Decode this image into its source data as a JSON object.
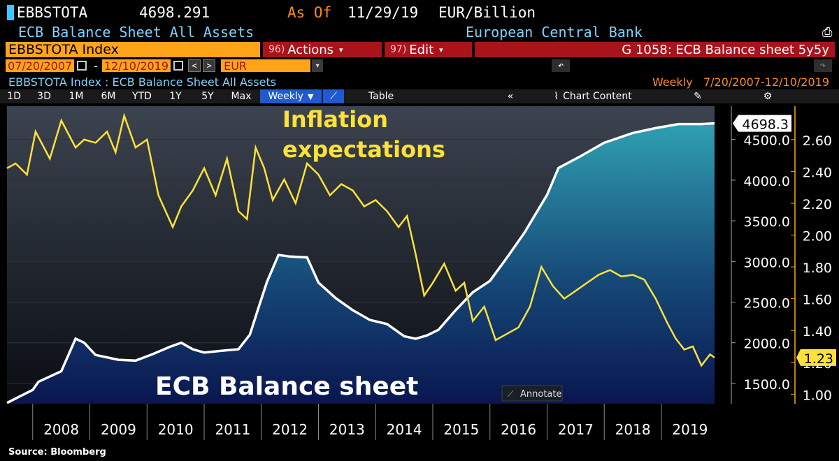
{
  "header": {
    "ticker": "EBBSTOTA",
    "value": "4698.291",
    "as_of_label": "As Of",
    "as_of_date": "11/29/19",
    "unit": "EUR/Billion",
    "subtitle": "ECB Balance Sheet All Assets",
    "source_bank": "European Central Bank"
  },
  "toolbar": {
    "index": "EBBSTOTA Index",
    "actions_num": "96)",
    "actions": "Actions",
    "edit_num": "97)",
    "edit": "Edit",
    "chart_name": "G 1058: ECB Balance sheet 5y5y",
    "start_date": "07/20/2007",
    "end_date": "12/10/2019",
    "currency": "EUR",
    "path": "EBBSTOTA Index : ECB Balance Sheet All Assets",
    "frequency_range": "Weekly   7/20/2007-12/10/2019",
    "periods": [
      "1D",
      "3D",
      "1M",
      "6M",
      "YTD",
      "1Y",
      "5Y",
      "Max"
    ],
    "weekly": "Weekly",
    "table": "Table",
    "chart_content": "Chart Content"
  },
  "colors": {
    "balance": "#ffffff",
    "inflation": "#ffe13a",
    "accent": "#ffa419",
    "button": "#a9131b"
  },
  "chart_data": {
    "type": "line",
    "annotations": [
      "Inflation expectations",
      "ECB Balance sheet"
    ],
    "annotate_button": "Annotate",
    "x_ticks": [
      "2008",
      "2009",
      "2010",
      "2011",
      "2012",
      "2013",
      "2014",
      "2015",
      "2016",
      "2017",
      "2018",
      "2019"
    ],
    "x_range": [
      2007.55,
      2019.93
    ],
    "left_axis": {
      "ticks": [
        "4500.0",
        "4000.0",
        "3500.0",
        "3000.0",
        "2500.0",
        "2000.0",
        "1500.0"
      ],
      "range": [
        1250,
        4910
      ]
    },
    "right_axis": {
      "ticks": [
        "2.60",
        "2.40",
        "2.20",
        "2.00",
        "1.80",
        "1.60",
        "1.40",
        "1.20",
        "1.00"
      ],
      "range": [
        0.94,
        2.81
      ]
    },
    "last_labels": {
      "balance": "4698.3",
      "inflation": "1.23"
    },
    "series": [
      {
        "axis": "left",
        "x": [
          2007.55,
          2007.8,
          2008.0,
          2008.1,
          2008.5,
          2008.75,
          2008.9,
          2009.1,
          2009.5,
          2009.8,
          2010.1,
          2010.4,
          2010.6,
          2010.8,
          2011.0,
          2011.3,
          2011.6,
          2011.8,
          2011.95,
          2012.1,
          2012.3,
          2012.5,
          2012.8,
          2013.0,
          2013.3,
          2013.6,
          2013.9,
          2014.2,
          2014.5,
          2014.7,
          2014.9,
          2015.1,
          2015.4,
          2015.7,
          2016.0,
          2016.3,
          2016.6,
          2017.0,
          2017.2,
          2017.6,
          2018.0,
          2018.5,
          2018.9,
          2019.3,
          2019.7,
          2019.93
        ],
        "y": [
          1260,
          1350,
          1420,
          1520,
          1650,
          2050,
          2000,
          1850,
          1790,
          1780,
          1860,
          1950,
          2000,
          1920,
          1880,
          1900,
          1920,
          2100,
          2430,
          2750,
          3080,
          3060,
          3050,
          2740,
          2550,
          2400,
          2280,
          2230,
          2080,
          2050,
          2090,
          2160,
          2400,
          2620,
          2760,
          3050,
          3350,
          3820,
          4150,
          4300,
          4460,
          4580,
          4640,
          4690,
          4690,
          4698.3
        ]
      },
      {
        "axis": "right",
        "x": [
          2007.55,
          2007.7,
          2007.9,
          2008.05,
          2008.3,
          2008.5,
          2008.75,
          2008.9,
          2009.1,
          2009.3,
          2009.45,
          2009.6,
          2009.8,
          2010.0,
          2010.2,
          2010.45,
          2010.6,
          2010.8,
          2011.0,
          2011.2,
          2011.4,
          2011.6,
          2011.75,
          2011.9,
          2012.05,
          2012.2,
          2012.4,
          2012.6,
          2012.8,
          2013.0,
          2013.2,
          2013.4,
          2013.6,
          2013.8,
          2014.0,
          2014.2,
          2014.4,
          2014.55,
          2014.7,
          2014.85,
          2015.0,
          2015.2,
          2015.4,
          2015.55,
          2015.7,
          2015.9,
          2016.1,
          2016.3,
          2016.5,
          2016.7,
          2016.9,
          2017.1,
          2017.3,
          2017.5,
          2017.7,
          2017.9,
          2018.1,
          2018.3,
          2018.5,
          2018.7,
          2018.9,
          2019.1,
          2019.25,
          2019.4,
          2019.55,
          2019.7,
          2019.85,
          2019.93
        ],
        "y": [
          2.42,
          2.45,
          2.38,
          2.65,
          2.48,
          2.72,
          2.55,
          2.6,
          2.58,
          2.65,
          2.52,
          2.75,
          2.55,
          2.6,
          2.25,
          2.05,
          2.18,
          2.28,
          2.42,
          2.25,
          2.48,
          2.15,
          2.1,
          2.55,
          2.42,
          2.22,
          2.35,
          2.2,
          2.45,
          2.38,
          2.25,
          2.32,
          2.28,
          2.18,
          2.22,
          2.15,
          2.05,
          2.12,
          1.88,
          1.62,
          1.7,
          1.82,
          1.65,
          1.7,
          1.46,
          1.55,
          1.34,
          1.38,
          1.42,
          1.55,
          1.8,
          1.68,
          1.6,
          1.65,
          1.7,
          1.75,
          1.78,
          1.74,
          1.75,
          1.72,
          1.6,
          1.45,
          1.35,
          1.28,
          1.3,
          1.18,
          1.25,
          1.23
        ]
      }
    ]
  },
  "source": "Source: Bloomberg"
}
